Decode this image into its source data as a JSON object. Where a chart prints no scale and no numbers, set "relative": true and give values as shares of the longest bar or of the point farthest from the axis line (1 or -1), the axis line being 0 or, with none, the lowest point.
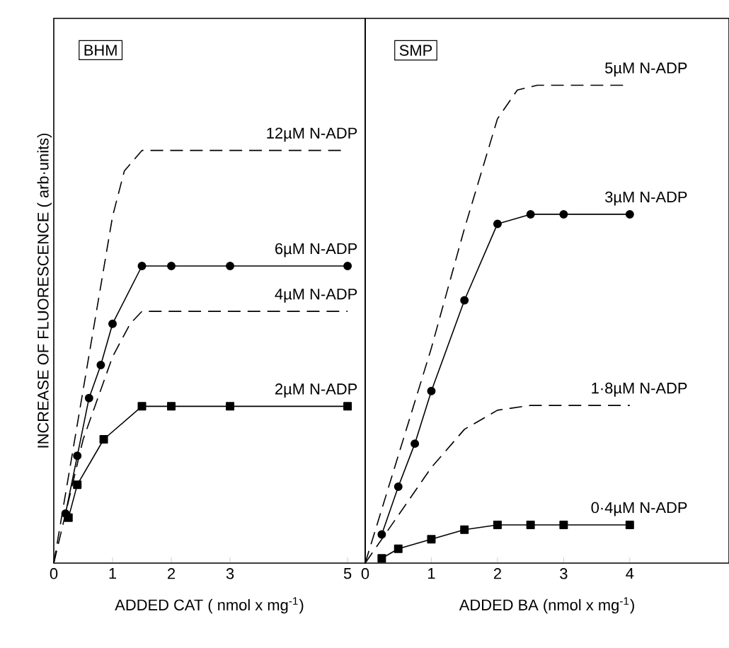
{
  "chart_data": [
    {
      "type": "line",
      "title": "BHM",
      "xlabel": "ADDED CAT ( nmol x mg$^{-1}$)",
      "ylabel": "INCREASE OF FLUORESCENCE ( arb·units)",
      "relative": true,
      "xlim": [
        0,
        5.3
      ],
      "xticks": [
        0,
        1,
        2,
        3,
        5
      ],
      "tick_labels": "x",
      "series": [
        {
          "name": "12µM N-ADP",
          "color": "#000000",
          "marker": "none",
          "line_style": "dashed",
          "x": [
            0,
            0.5,
            1,
            1.2,
            1.5,
            2,
            3,
            5
          ],
          "values": [
            0,
            0.42,
            0.84,
            0.95,
            1,
            1,
            1,
            1
          ]
        },
        {
          "name": "6µM N-ADP",
          "color": "#000000",
          "marker": "circle",
          "line_style": "solid",
          "x": [
            0.2,
            0.4,
            0.6,
            0.8,
            1,
            1.5,
            2,
            3,
            5
          ],
          "values": [
            0.12,
            0.26,
            0.4,
            0.48,
            0.58,
            0.72,
            0.72,
            0.72,
            0.72
          ]
        },
        {
          "name": "4µM N-ADP",
          "color": "#000000",
          "marker": "none",
          "line_style": "dashed",
          "x": [
            0,
            0.5,
            1,
            1.3,
            1.5,
            2,
            3,
            5
          ],
          "values": [
            0,
            0.3,
            0.5,
            0.58,
            0.61,
            0.61,
            0.61,
            0.61
          ]
        },
        {
          "name": "2µM N-ADP",
          "color": "#000000",
          "marker": "square",
          "line_style": "solid",
          "x": [
            0.25,
            0.4,
            0.85,
            1.5,
            2,
            3,
            5
          ],
          "values": [
            0.11,
            0.19,
            0.3,
            0.38,
            0.38,
            0.38,
            0.38
          ]
        }
      ]
    },
    {
      "type": "line",
      "title": "SMP",
      "xlabel": "ADDED BA (nmol x mg$^{-1}$)",
      "relative": true,
      "xlim": [
        0,
        5.5
      ],
      "xticks": [
        0,
        1,
        2,
        3,
        4
      ],
      "tick_labels": "x",
      "series": [
        {
          "name": "5µM N-ADP",
          "color": "#000000",
          "marker": "none",
          "line_style": "dashed",
          "x": [
            0,
            1,
            1.5,
            2,
            2.3,
            2.6,
            4
          ],
          "values": [
            0,
            0.45,
            0.7,
            0.93,
            0.99,
            1,
            1
          ]
        },
        {
          "name": "3µM N-ADP",
          "color": "#000000",
          "marker": "circle",
          "line_style": "solid",
          "x": [
            0.25,
            0.5,
            0.75,
            1,
            1.5,
            2,
            2.5,
            3,
            4
          ],
          "values": [
            0.06,
            0.16,
            0.25,
            0.36,
            0.55,
            0.71,
            0.73,
            0.73,
            0.73
          ]
        },
        {
          "name": "1·8µM N-ADP",
          "color": "#000000",
          "marker": "none",
          "line_style": "dashed",
          "x": [
            0,
            0.5,
            1,
            1.5,
            2,
            2.5,
            4
          ],
          "values": [
            0,
            0.1,
            0.2,
            0.28,
            0.32,
            0.33,
            0.33
          ]
        },
        {
          "name": "0·4µM N-ADP",
          "color": "#000000",
          "marker": "square",
          "line_style": "solid",
          "x": [
            0.25,
            0.5,
            1,
            1.5,
            2,
            2.5,
            3,
            4
          ],
          "values": [
            0.01,
            0.03,
            0.05,
            0.07,
            0.08,
            0.08,
            0.08,
            0.08
          ]
        }
      ]
    }
  ]
}
